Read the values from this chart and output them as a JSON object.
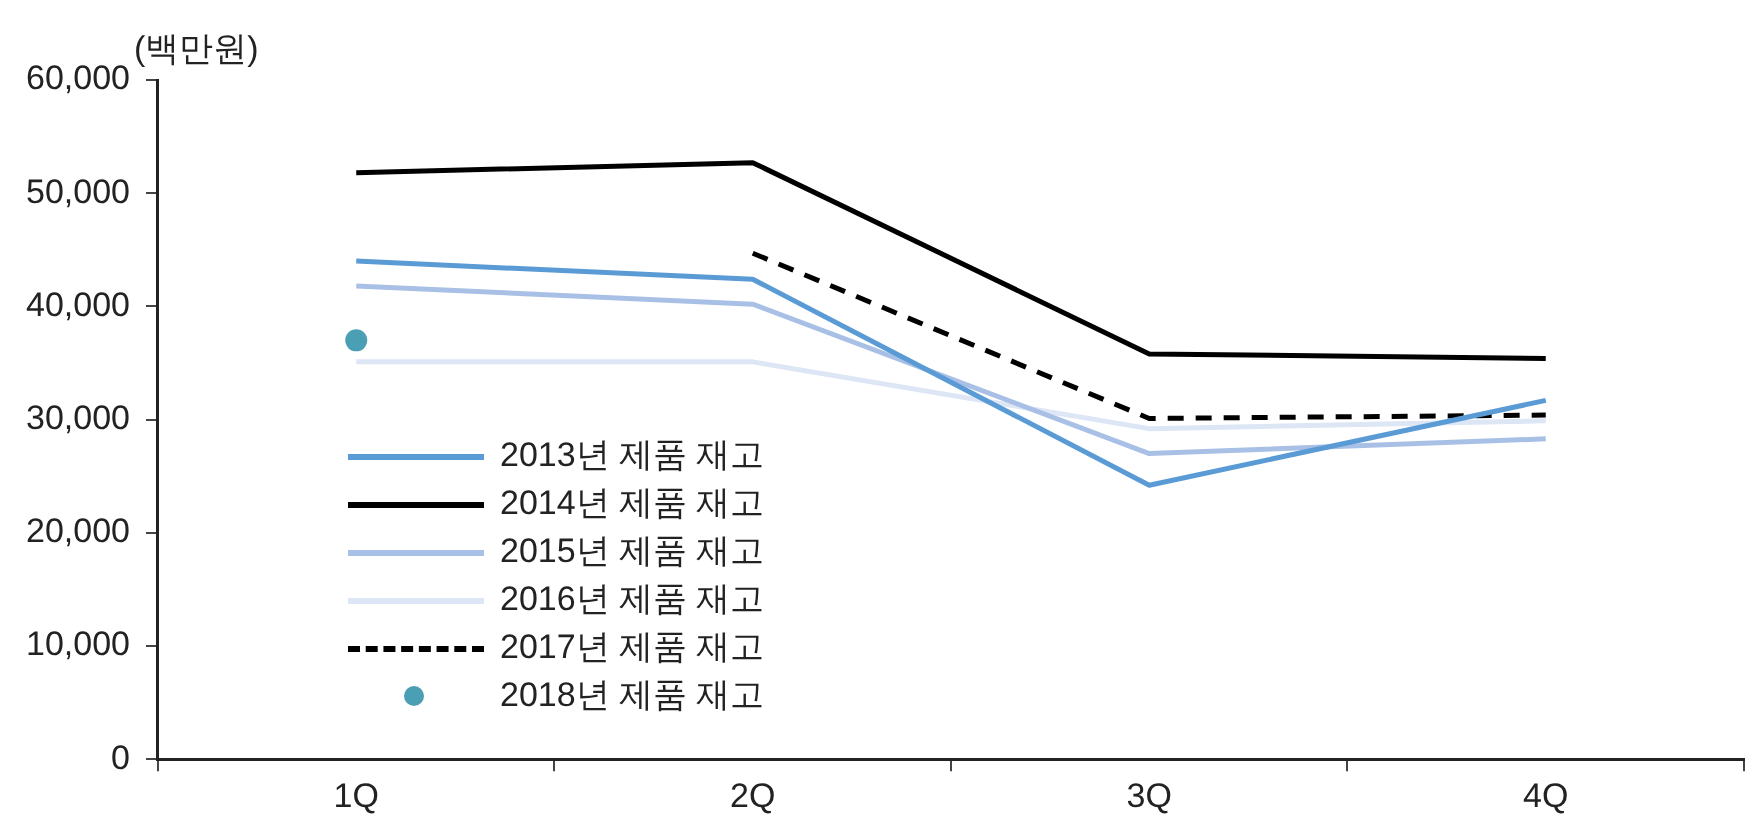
{
  "chart_data": {
    "type": "line",
    "ylabel": "(백만원)",
    "categories": [
      "1Q",
      "2Q",
      "3Q",
      "4Q"
    ],
    "ylim": [
      0,
      60000
    ],
    "yticks": [
      {
        "value": 0,
        "label": "0"
      },
      {
        "value": 10000,
        "label": "10,000"
      },
      {
        "value": 20000,
        "label": "20,000"
      },
      {
        "value": 30000,
        "label": "30,000"
      },
      {
        "value": 40000,
        "label": "40,000"
      },
      {
        "value": 50000,
        "label": "50,000"
      },
      {
        "value": 60000,
        "label": "60,000"
      }
    ],
    "grid": false,
    "legend": "bottom left",
    "marker": "none",
    "series": [
      {
        "name": "2013년 제품 재고",
        "color": "#5b9bd5",
        "values": [
          44000,
          42400,
          24200,
          31700
        ]
      },
      {
        "name": "2014년 제품 재고",
        "color": "#000000",
        "values": [
          51800,
          52700,
          35800,
          35400
        ]
      },
      {
        "name": "2015년 제품 재고",
        "color": "#a9c0e6",
        "values": [
          41800,
          40200,
          27000,
          28300
        ]
      },
      {
        "name": "2016년 제품 재고",
        "color": "#dde6f5",
        "values": [
          35100,
          35100,
          29200,
          29900
        ]
      },
      {
        "name": "2017년 제품 재고",
        "color": "#000000",
        "line_style": "dashed",
        "values": [
          null,
          44700,
          30100,
          30400
        ]
      },
      {
        "name": "2018년 제품 재고",
        "color": "#4a9fb5",
        "type": "scatter",
        "marker": "circle",
        "values": [
          37000,
          null,
          null,
          null
        ]
      }
    ]
  }
}
